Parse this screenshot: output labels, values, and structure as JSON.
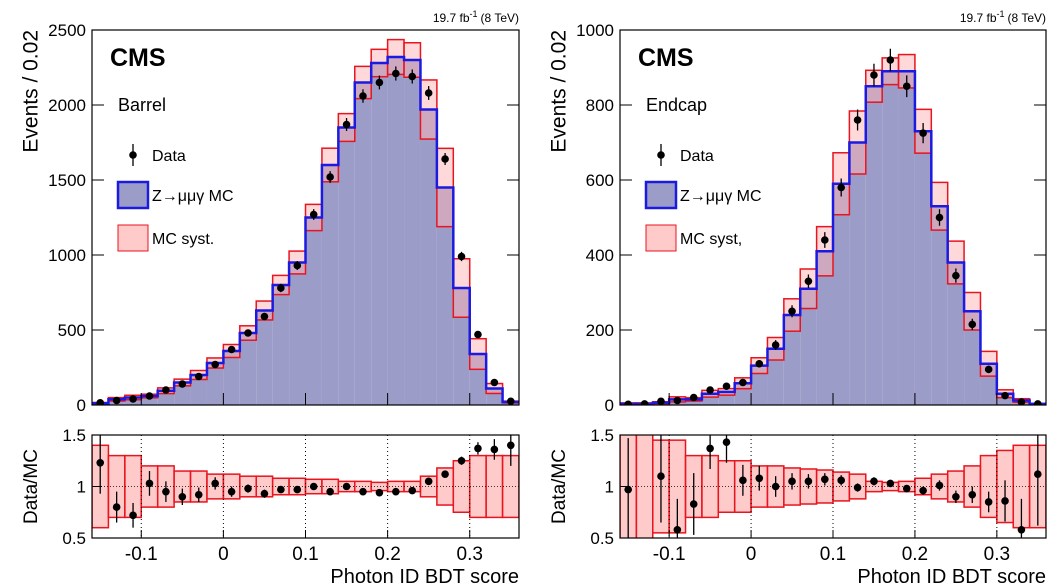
{
  "chart_data": [
    {
      "type": "histogram",
      "experiment": "CMS",
      "region": "Barrel",
      "lumi": {
        "text": "19.7 fb",
        "sup": "-1",
        "rest": "(8 TeV)"
      },
      "ylabel": "Events / 0.02",
      "xlabel": "Photon ID BDT score",
      "bins": [
        -0.16,
        -0.14,
        -0.12,
        -0.1,
        -0.08,
        -0.06,
        -0.04,
        -0.02,
        0,
        0.02,
        0.04,
        0.06,
        0.08,
        0.1,
        0.12,
        0.14,
        0.16,
        0.18,
        0.2,
        0.22,
        0.24,
        0.26,
        0.28,
        0.3,
        0.32,
        0.34,
        0.36
      ],
      "xlim": [
        -0.16,
        0.36
      ],
      "xticks": [
        -0.1,
        0,
        0.1,
        0.2,
        0.3
      ],
      "ylim": [
        0,
        2500
      ],
      "yticks": [
        0,
        500,
        1000,
        1500,
        2000,
        2500
      ],
      "series": [
        {
          "name": "Data",
          "color": "#000000",
          "values": [
            15,
            30,
            40,
            60,
            100,
            140,
            190,
            270,
            370,
            480,
            590,
            780,
            930,
            1270,
            1520,
            1870,
            2060,
            2150,
            2210,
            2190,
            2080,
            1640,
            990,
            470,
            150,
            25
          ],
          "errors": [
            4,
            6,
            6,
            8,
            10,
            12,
            14,
            16,
            19,
            22,
            24,
            28,
            30,
            36,
            39,
            43,
            45,
            46,
            47,
            47,
            46,
            40,
            31,
            22,
            12,
            5
          ]
        },
        {
          "name": "Z→μμγ MC",
          "color": "#9c9cc8",
          "edge": "#1a1ae0",
          "values": [
            12,
            38,
            50,
            60,
            95,
            150,
            200,
            280,
            360,
            480,
            630,
            800,
            950,
            1250,
            1600,
            1850,
            2150,
            2280,
            2320,
            2300,
            1970,
            1450,
            780,
            340,
            110,
            20
          ]
        },
        {
          "name": "MC syst.",
          "color": "#ffb4b4",
          "edge": "#e8141e",
          "values": [
            0.4,
            0.3,
            0.3,
            0.2,
            0.2,
            0.15,
            0.15,
            0.12,
            0.12,
            0.1,
            0.1,
            0.08,
            0.08,
            0.07,
            0.07,
            0.05,
            0.05,
            0.04,
            0.05,
            0.05,
            0.1,
            0.18,
            0.25,
            0.3,
            0.3,
            0.3
          ]
        }
      ],
      "ratio": {
        "ylabel": "Data/MC",
        "ylim": [
          0.5,
          1.5
        ],
        "yticks": [
          0.5,
          1,
          1.5
        ],
        "values": [
          1.23,
          0.8,
          0.72,
          1.03,
          0.95,
          0.9,
          0.92,
          1.03,
          0.95,
          0.98,
          0.93,
          0.97,
          0.97,
          1.0,
          0.95,
          1.0,
          0.95,
          0.94,
          0.95,
          0.96,
          1.05,
          1.12,
          1.25,
          1.37,
          1.36,
          1.4
        ],
        "errors": [
          0.3,
          0.15,
          0.12,
          0.12,
          0.1,
          0.08,
          0.07,
          0.06,
          0.05,
          0.04,
          0.04,
          0.03,
          0.03,
          0.03,
          0.03,
          0.02,
          0.02,
          0.02,
          0.02,
          0.02,
          0.02,
          0.03,
          0.04,
          0.06,
          0.1,
          0.2
        ]
      }
    },
    {
      "type": "histogram",
      "experiment": "CMS",
      "region": "Endcap",
      "lumi": {
        "text": "19.7 fb",
        "sup": "-1",
        "rest": "(8 TeV)"
      },
      "ylabel": "Events / 0.02",
      "xlabel": "Photon ID BDT score",
      "bins": [
        -0.16,
        -0.14,
        -0.12,
        -0.1,
        -0.08,
        -0.06,
        -0.04,
        -0.02,
        0,
        0.02,
        0.04,
        0.06,
        0.08,
        0.1,
        0.12,
        0.14,
        0.16,
        0.18,
        0.2,
        0.22,
        0.24,
        0.26,
        0.28,
        0.3,
        0.32,
        0.34,
        0.36
      ],
      "xlim": [
        -0.16,
        0.36
      ],
      "xticks": [
        -0.1,
        0,
        0.1,
        0.2,
        0.3
      ],
      "ylim": [
        0,
        1000
      ],
      "yticks": [
        0,
        200,
        400,
        600,
        800,
        1000
      ],
      "series": [
        {
          "name": "Data",
          "color": "#000000",
          "values": [
            2,
            3,
            10,
            12,
            20,
            40,
            50,
            60,
            110,
            160,
            250,
            330,
            440,
            580,
            760,
            880,
            920,
            850,
            725,
            500,
            345,
            215,
            95,
            25,
            8,
            3
          ],
          "errors": [
            1,
            2,
            3,
            3,
            4,
            6,
            7,
            8,
            10,
            13,
            16,
            18,
            21,
            24,
            28,
            30,
            30,
            29,
            27,
            22,
            19,
            15,
            10,
            5,
            3,
            2
          ]
        },
        {
          "name": "Z→μμγ MC",
          "color": "#9c9cc8",
          "edge": "#1a1ae0",
          "values": [
            3,
            3,
            6,
            15,
            15,
            30,
            35,
            58,
            105,
            150,
            240,
            310,
            410,
            590,
            700,
            850,
            890,
            890,
            730,
            530,
            380,
            250,
            110,
            30,
            12,
            3
          ]
        },
        {
          "name": "MC syst,",
          "color": "#ffb4b4",
          "edge": "#e8141e",
          "values": [
            0.9,
            0.9,
            0.45,
            0.45,
            0.3,
            0.3,
            0.25,
            0.25,
            0.2,
            0.2,
            0.18,
            0.17,
            0.16,
            0.14,
            0.12,
            0.05,
            0.04,
            0.05,
            0.08,
            0.12,
            0.15,
            0.2,
            0.3,
            0.35,
            0.4,
            0.4
          ]
        }
      ],
      "ratio": {
        "ylabel": "Data/MC",
        "ylim": [
          0.5,
          1.5
        ],
        "yticks": [
          0.5,
          1,
          1.5
        ],
        "values": [
          0.97,
          null,
          1.1,
          0.58,
          0.83,
          1.37,
          1.43,
          1.06,
          1.08,
          1.0,
          1.05,
          1.05,
          1.07,
          1.06,
          0.99,
          1.05,
          1.03,
          0.98,
          0.96,
          1.01,
          0.9,
          0.92,
          0.85,
          0.86,
          0.58,
          1.12
        ],
        "errors": [
          0.5,
          null,
          0.45,
          0.3,
          0.3,
          0.2,
          0.2,
          0.15,
          0.12,
          0.1,
          0.08,
          0.07,
          0.06,
          0.05,
          0.04,
          0.04,
          0.03,
          0.03,
          0.04,
          0.05,
          0.06,
          0.08,
          0.1,
          0.2,
          0.3,
          0.5
        ]
      }
    }
  ]
}
